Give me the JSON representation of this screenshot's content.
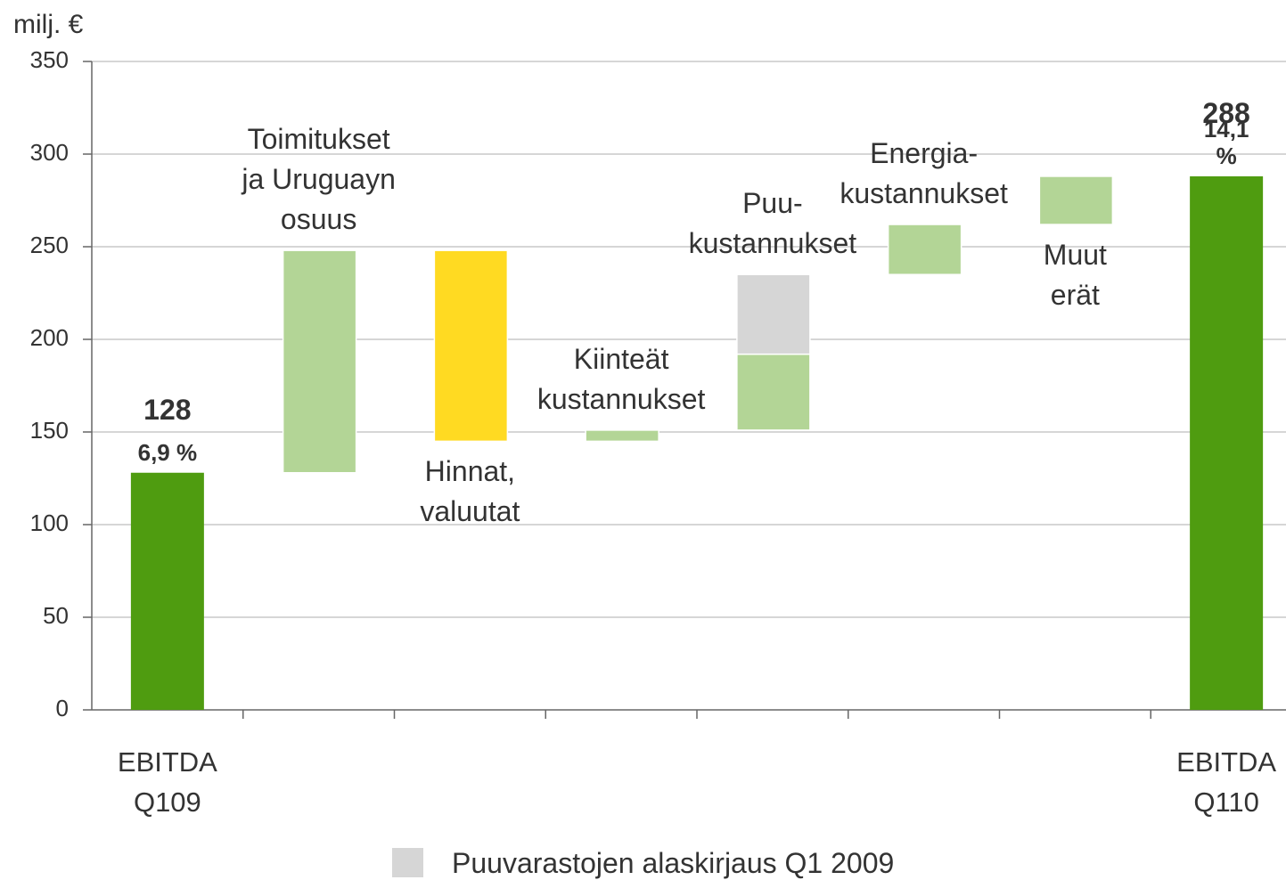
{
  "chart_data": {
    "type": "waterfall",
    "y_label": "milj. €",
    "ylim": [
      0,
      350
    ],
    "yticks": [
      0,
      50,
      100,
      150,
      200,
      250,
      300,
      350
    ],
    "grid": true,
    "categories": [
      "EBITDA\nQ109",
      null,
      null,
      null,
      null,
      null,
      null,
      "EBITDA\nQ110"
    ],
    "column_labels": [
      null,
      "Toimitukset\nja Uruguayn\nosuus",
      "Hinnat,\nvaluutat",
      "Kiinteät\nkustannukset",
      "Puu-\nkustannukset",
      "Energia-\nkustannukset",
      "Muut\nerät",
      null
    ],
    "totals": {
      "color": "#4f9c10",
      "values": [
        128,
        null,
        null,
        null,
        null,
        null,
        null,
        288
      ],
      "margin_labels": [
        "6,9 %",
        null,
        null,
        null,
        null,
        null,
        null,
        "14,1 %"
      ]
    },
    "series": [
      {
        "color": "#b3d596",
        "values": [
          null,
          120,
          null,
          6,
          41,
          27,
          26,
          null
        ]
      },
      {
        "color": "#ffda22",
        "values": [
          null,
          null,
          -103,
          null,
          null,
          null,
          null,
          null
        ]
      },
      {
        "name": "Puuvarastojen alaskirjaus Q1 2009",
        "color": "#d6d6d6",
        "values": [
          null,
          null,
          null,
          null,
          43,
          null,
          null,
          null
        ]
      }
    ]
  }
}
